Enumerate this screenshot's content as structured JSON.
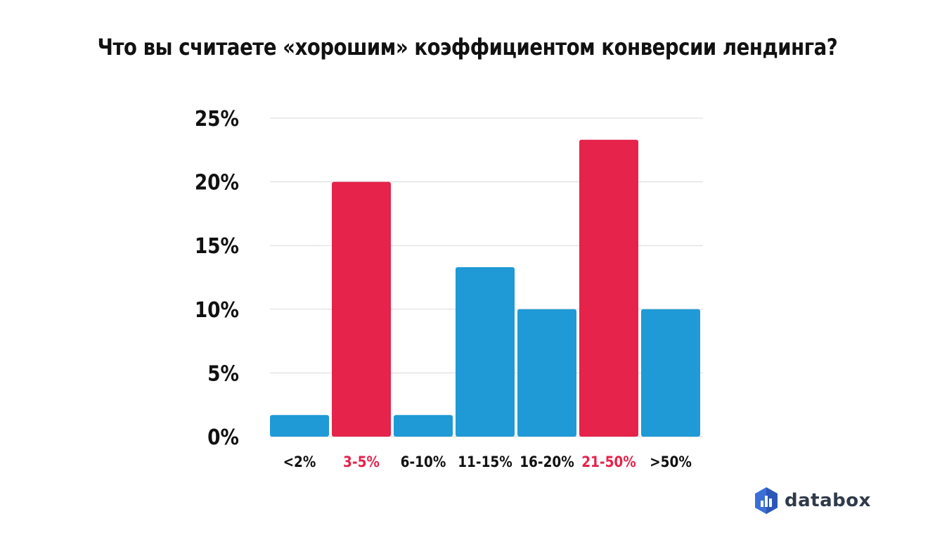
{
  "chart_data": {
    "type": "bar",
    "title": "Что вы считаете «хорошим» коэффициентом конверсии лендинга?",
    "xlabel": "",
    "ylabel": "",
    "categories": [
      "<2%",
      "3-5%",
      "6-10%",
      "11-15%",
      "16-20%",
      "21-50%",
      ">50%"
    ],
    "values": [
      1.7,
      20,
      1.7,
      13.3,
      10,
      23.3,
      10
    ],
    "highlighted": [
      false,
      true,
      false,
      false,
      false,
      true,
      false
    ],
    "ylim": [
      0,
      25
    ],
    "y_ticks": [
      0,
      5,
      10,
      15,
      20,
      25
    ],
    "y_tick_labels": [
      "0%",
      "5%",
      "10%",
      "15%",
      "20%",
      "25%"
    ],
    "grid": true,
    "colors": {
      "bar": "#1f9ad6",
      "bar_highlight": "#e5234b",
      "grid": "#d9d9d9",
      "tick_label": "#111111",
      "tick_label_highlight": "#e5234b"
    }
  },
  "brand": {
    "name": "databox",
    "icon": "databox-logo-icon"
  }
}
